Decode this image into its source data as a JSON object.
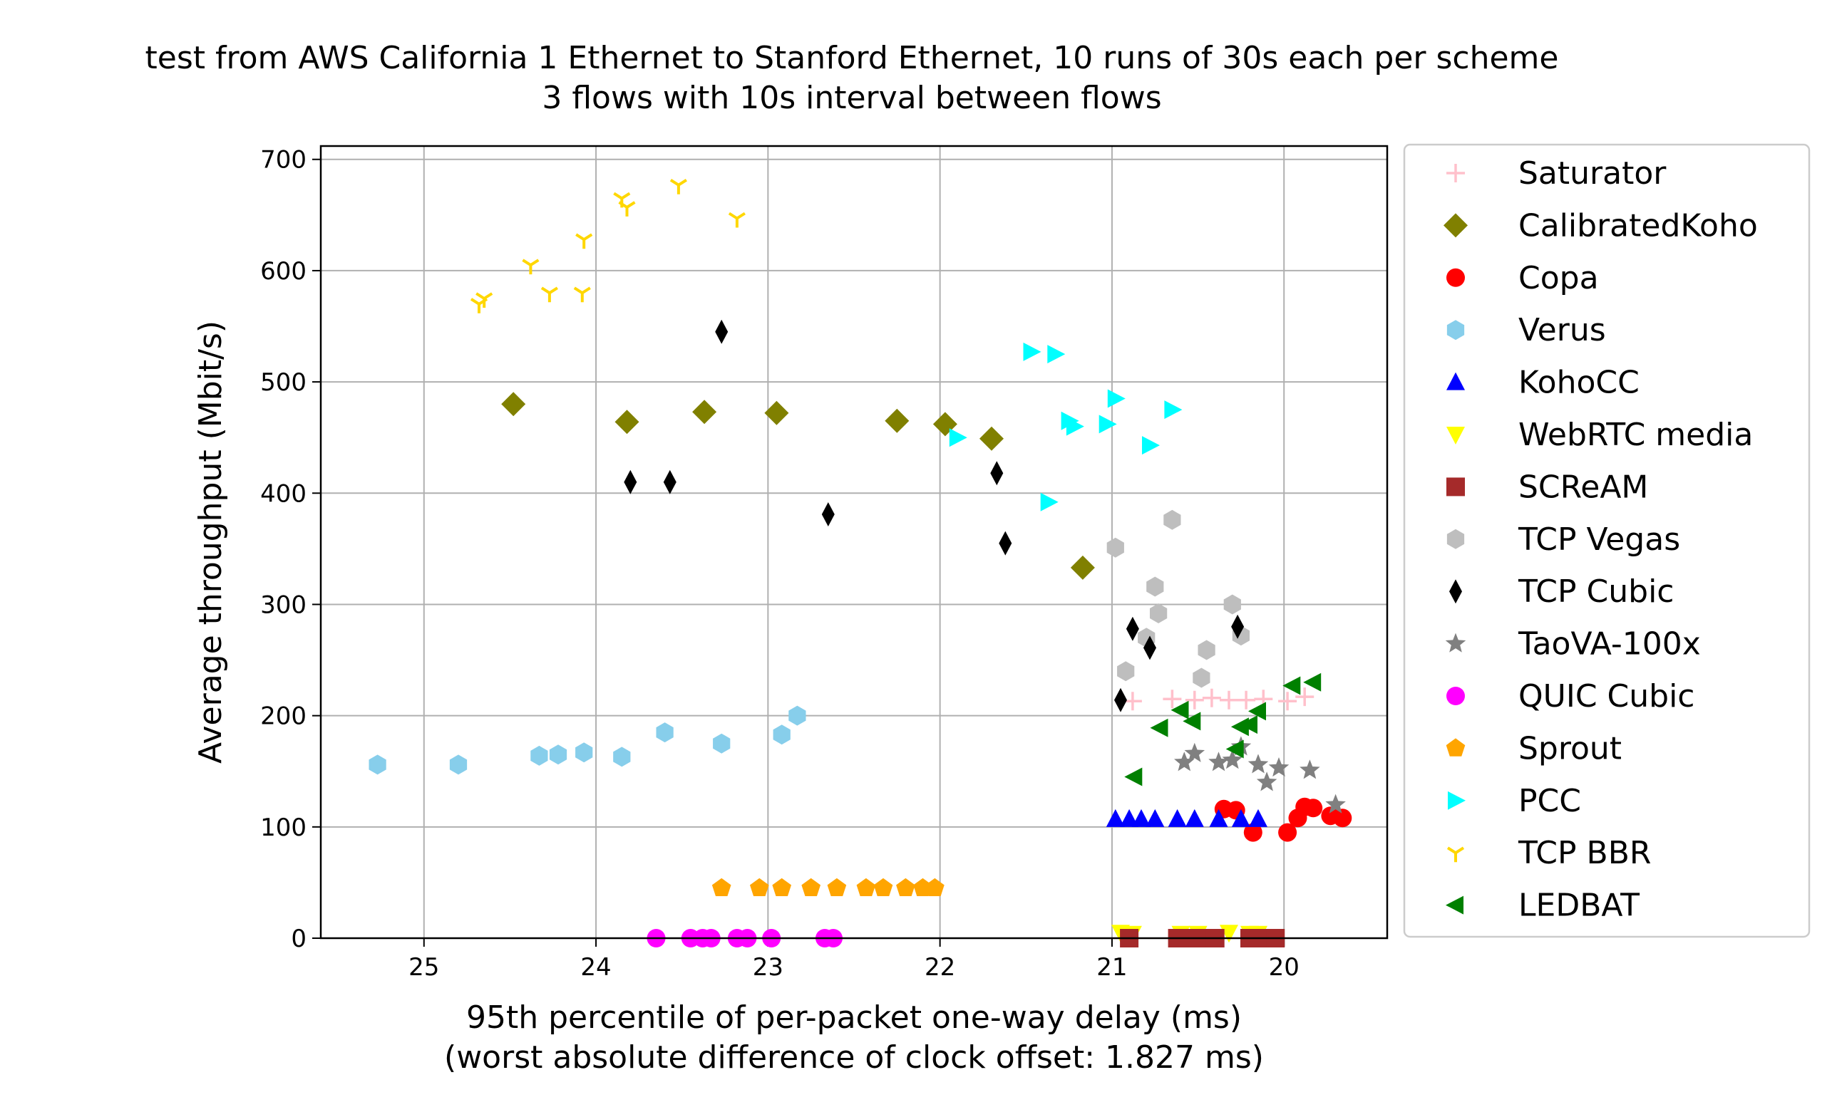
{
  "chart_data": {
    "type": "scatter",
    "title": [
      "test from AWS California 1 Ethernet to Stanford Ethernet, 10 runs of 30s each per scheme",
      "3 flows with 10s interval between flows"
    ],
    "xlabel": [
      "95th percentile of per-packet one-way delay (ms)",
      "(worst absolute difference of clock offset: 1.827 ms)"
    ],
    "ylabel": "Average throughput (Mbit/s)",
    "x_inverted": true,
    "xlim": [
      25.6,
      19.4
    ],
    "ylim": [
      0,
      712
    ],
    "xticks": [
      25,
      24,
      23,
      22,
      21,
      20
    ],
    "yticks": [
      0,
      100,
      200,
      300,
      400,
      500,
      600,
      700
    ],
    "grid": true,
    "legend_position": "outside-right",
    "series": [
      {
        "name": "Saturator",
        "color": "#ffc0cb",
        "marker": "plus",
        "points": [
          [
            20.88,
            213
          ],
          [
            20.65,
            215
          ],
          [
            20.52,
            214
          ],
          [
            20.42,
            216
          ],
          [
            20.32,
            214
          ],
          [
            20.22,
            214
          ],
          [
            20.12,
            215
          ],
          [
            19.98,
            213
          ],
          [
            19.88,
            217
          ]
        ]
      },
      {
        "name": "CalibratedKoho",
        "color": "#808000",
        "marker": "diamond",
        "points": [
          [
            24.48,
            480
          ],
          [
            23.82,
            464
          ],
          [
            23.37,
            473
          ],
          [
            22.95,
            472
          ],
          [
            22.25,
            465
          ],
          [
            21.97,
            462
          ],
          [
            21.7,
            449
          ],
          [
            21.17,
            333
          ]
        ]
      },
      {
        "name": "Copa",
        "color": "#ff0000",
        "marker": "circle",
        "points": [
          [
            20.35,
            116
          ],
          [
            20.28,
            115
          ],
          [
            20.18,
            95
          ],
          [
            19.98,
            95
          ],
          [
            19.92,
            108
          ],
          [
            19.88,
            118
          ],
          [
            19.83,
            117
          ],
          [
            19.73,
            110
          ],
          [
            19.66,
            108
          ]
        ]
      },
      {
        "name": "Verus",
        "color": "#87ceeb",
        "marker": "hexagon",
        "points": [
          [
            25.27,
            156
          ],
          [
            24.8,
            156
          ],
          [
            24.33,
            164
          ],
          [
            24.22,
            165
          ],
          [
            24.07,
            167
          ],
          [
            23.85,
            163
          ],
          [
            23.6,
            185
          ],
          [
            23.27,
            175
          ],
          [
            22.92,
            183
          ],
          [
            22.83,
            200
          ]
        ]
      },
      {
        "name": "KohoCC",
        "color": "#0000ff",
        "marker": "triangle-up",
        "points": [
          [
            20.98,
            107
          ],
          [
            20.9,
            107
          ],
          [
            20.83,
            107
          ],
          [
            20.75,
            107
          ],
          [
            20.62,
            107
          ],
          [
            20.52,
            107
          ],
          [
            20.38,
            107
          ],
          [
            20.25,
            107
          ],
          [
            20.15,
            107
          ]
        ]
      },
      {
        "name": "WebRTC media",
        "color": "#ffff00",
        "marker": "triangle-down",
        "points": [
          [
            20.95,
            5
          ],
          [
            20.88,
            4
          ],
          [
            20.6,
            4
          ],
          [
            20.5,
            4
          ],
          [
            20.32,
            5
          ],
          [
            20.2,
            4
          ],
          [
            20.15,
            4
          ]
        ]
      },
      {
        "name": "SCReAM",
        "color": "#a52a2a",
        "marker": "square",
        "points": [
          [
            20.9,
            0
          ],
          [
            20.62,
            0
          ],
          [
            20.55,
            0
          ],
          [
            20.48,
            0
          ],
          [
            20.4,
            0
          ],
          [
            20.2,
            0
          ],
          [
            20.12,
            0
          ],
          [
            20.05,
            0
          ]
        ]
      },
      {
        "name": "TCP Vegas",
        "color": "#bebebe",
        "marker": "hexagon",
        "points": [
          [
            20.98,
            351
          ],
          [
            20.92,
            240
          ],
          [
            20.8,
            270
          ],
          [
            20.75,
            316
          ],
          [
            20.73,
            292
          ],
          [
            20.65,
            376
          ],
          [
            20.48,
            234
          ],
          [
            20.45,
            259
          ],
          [
            20.3,
            300
          ],
          [
            20.25,
            272
          ]
        ]
      },
      {
        "name": "TCP Cubic",
        "color": "#000000",
        "marker": "thin-diamond",
        "points": [
          [
            23.27,
            545
          ],
          [
            23.8,
            410
          ],
          [
            23.57,
            410
          ],
          [
            22.65,
            381
          ],
          [
            21.67,
            418
          ],
          [
            21.62,
            355
          ],
          [
            20.95,
            214
          ],
          [
            20.88,
            278
          ],
          [
            20.78,
            261
          ],
          [
            20.27,
            280
          ]
        ]
      },
      {
        "name": "TaoVA-100x",
        "color": "#808080",
        "marker": "star",
        "points": [
          [
            20.58,
            158
          ],
          [
            20.52,
            166
          ],
          [
            20.38,
            158
          ],
          [
            20.3,
            160
          ],
          [
            20.25,
            172
          ],
          [
            20.15,
            156
          ],
          [
            20.1,
            140
          ],
          [
            20.03,
            153
          ],
          [
            19.85,
            151
          ],
          [
            19.7,
            120
          ]
        ]
      },
      {
        "name": "QUIC Cubic",
        "color": "#ff00ff",
        "marker": "circle",
        "points": [
          [
            23.65,
            0
          ],
          [
            23.45,
            0
          ],
          [
            23.38,
            0
          ],
          [
            23.33,
            0
          ],
          [
            23.18,
            0
          ],
          [
            23.12,
            0
          ],
          [
            22.98,
            0
          ],
          [
            22.67,
            0
          ],
          [
            22.62,
            0
          ]
        ]
      },
      {
        "name": "Sprout",
        "color": "#ffa500",
        "marker": "pentagon",
        "points": [
          [
            23.27,
            45
          ],
          [
            23.05,
            45
          ],
          [
            22.92,
            45
          ],
          [
            22.75,
            45
          ],
          [
            22.6,
            45
          ],
          [
            22.43,
            45
          ],
          [
            22.33,
            45
          ],
          [
            22.2,
            45
          ],
          [
            22.1,
            45
          ],
          [
            22.03,
            45
          ]
        ]
      },
      {
        "name": "PCC",
        "color": "#00ffff",
        "marker": "triangle-right",
        "points": [
          [
            21.47,
            527
          ],
          [
            21.33,
            525
          ],
          [
            21.9,
            450
          ],
          [
            21.37,
            392
          ],
          [
            21.25,
            465
          ],
          [
            21.22,
            460
          ],
          [
            21.03,
            462
          ],
          [
            20.98,
            485
          ],
          [
            20.78,
            443
          ],
          [
            20.65,
            475
          ]
        ]
      },
      {
        "name": "TCP BBR",
        "color": "#ffd700",
        "marker": "tri-down",
        "points": [
          [
            24.68,
            570
          ],
          [
            24.65,
            575
          ],
          [
            24.38,
            605
          ],
          [
            24.27,
            580
          ],
          [
            24.08,
            580
          ],
          [
            24.07,
            628
          ],
          [
            23.85,
            665
          ],
          [
            23.82,
            657
          ],
          [
            23.52,
            677
          ],
          [
            23.18,
            647
          ]
        ]
      },
      {
        "name": "LEDBAT",
        "color": "#008000",
        "marker": "triangle-left",
        "points": [
          [
            20.87,
            145
          ],
          [
            20.72,
            189
          ],
          [
            20.6,
            205
          ],
          [
            20.53,
            195
          ],
          [
            20.28,
            170
          ],
          [
            20.25,
            190
          ],
          [
            20.2,
            192
          ],
          [
            20.15,
            204
          ],
          [
            19.95,
            227
          ],
          [
            19.83,
            230
          ]
        ]
      }
    ]
  }
}
